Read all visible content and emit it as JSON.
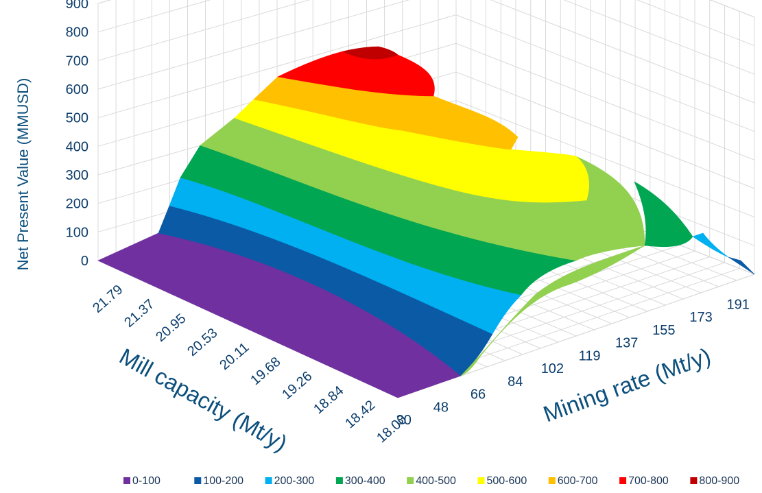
{
  "chart_data": {
    "type": "surface",
    "zlabel": "Net Present Value (MMUSD)",
    "xlabel": "Mill capacity (Mt/y)",
    "ylabel": "Mining rate (Mt/y)",
    "z_ticks": [
      "0",
      "100",
      "200",
      "300",
      "400",
      "500",
      "600",
      "700",
      "800",
      "900"
    ],
    "x_ticks": [
      "21.79",
      "21.37",
      "20.95",
      "20.53",
      "20.11",
      "19.68",
      "19.26",
      "18.84",
      "18.42",
      "18.00"
    ],
    "y_ticks": [
      "30",
      "48",
      "66",
      "84",
      "102",
      "119",
      "137",
      "155",
      "173",
      "191"
    ],
    "zlim": [
      0,
      900
    ],
    "grid": true,
    "legend_position": "bottom",
    "legend": [
      {
        "label": "0-100",
        "color": "#7030a0"
      },
      {
        "label": "100-200",
        "color": "#0b5aa6"
      },
      {
        "label": "200-300",
        "color": "#00b0f0"
      },
      {
        "label": "300-400",
        "color": "#00a651"
      },
      {
        "label": "400-500",
        "color": "#92d050"
      },
      {
        "label": "500-600",
        "color": "#ffff00"
      },
      {
        "label": "600-700",
        "color": "#ffc000"
      },
      {
        "label": "700-800",
        "color": "#ff0000"
      },
      {
        "label": "800-900",
        "color": "#c00000"
      }
    ],
    "peak": {
      "mill_capacity": 21.79,
      "mining_rate": 102,
      "npv": 860
    },
    "edge_profile_mining_rate_191": [
      0,
      60,
      120,
      180,
      240,
      290,
      330,
      360,
      380,
      390
    ]
  }
}
